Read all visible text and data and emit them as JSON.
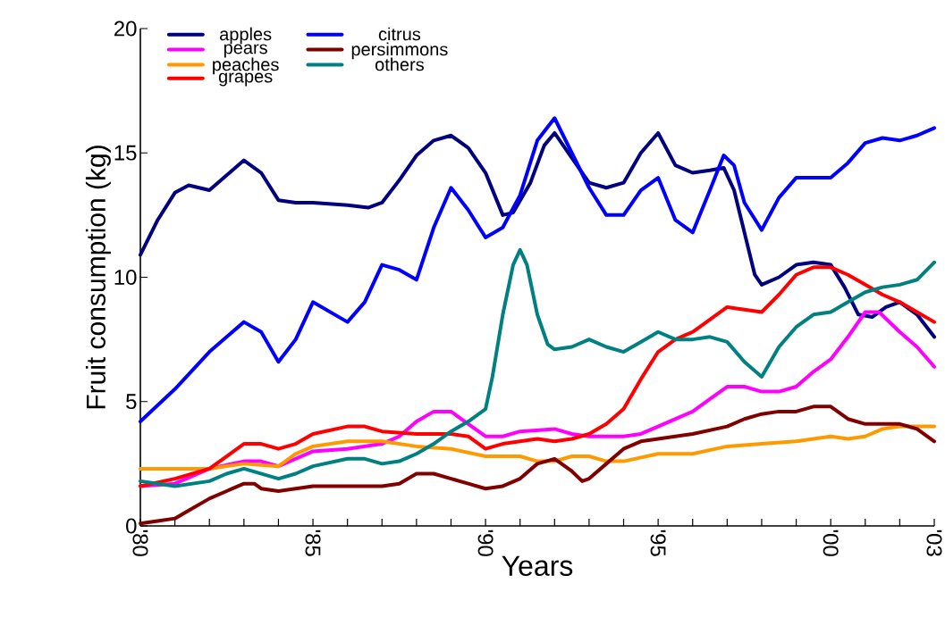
{
  "chart_data": {
    "type": "line",
    "xlabel": "Years",
    "ylabel": "Fruit consumption (kg)",
    "xlim": [
      1980,
      2003
    ],
    "ylim": [
      0,
      20
    ],
    "xticks": [
      {
        "value": 1980,
        "label": "'80"
      },
      {
        "value": 1981,
        "label": null
      },
      {
        "value": 1982,
        "label": null
      },
      {
        "value": 1983,
        "label": null
      },
      {
        "value": 1984,
        "label": null
      },
      {
        "value": 1985,
        "label": "'85"
      },
      {
        "value": 1986,
        "label": null
      },
      {
        "value": 1987,
        "label": null
      },
      {
        "value": 1988,
        "label": null
      },
      {
        "value": 1989,
        "label": null
      },
      {
        "value": 1990,
        "label": "'90"
      },
      {
        "value": 1991,
        "label": null
      },
      {
        "value": 1992,
        "label": null
      },
      {
        "value": 1993,
        "label": null
      },
      {
        "value": 1994,
        "label": null
      },
      {
        "value": 1995,
        "label": "'95"
      },
      {
        "value": 1996,
        "label": null
      },
      {
        "value": 1997,
        "label": null
      },
      {
        "value": 1998,
        "label": null
      },
      {
        "value": 1999,
        "label": null
      },
      {
        "value": 2000,
        "label": "'00"
      },
      {
        "value": 2001,
        "label": null
      },
      {
        "value": 2002,
        "label": null
      },
      {
        "value": 2003,
        "label": "'03"
      }
    ],
    "yticks": [
      0,
      5,
      10,
      15,
      20
    ],
    "grid": false,
    "legend": "top left",
    "marker": "none",
    "line_style": "solid",
    "series": [
      {
        "name": "apples",
        "color": "#000080",
        "x": [
          1980,
          1980.5,
          1981,
          1981.4,
          1982,
          1982.5,
          1983,
          1983.5,
          1984,
          1984.5,
          1985,
          1986,
          1986.6,
          1987,
          1987.5,
          1988,
          1988.5,
          1989,
          1989.5,
          1990,
          1990.5,
          1990.8,
          1991.3,
          1991.7,
          1992,
          1992.5,
          1993,
          1993.5,
          1994,
          1994.5,
          1995,
          1995.5,
          1996,
          1996.5,
          1996.9,
          1997.2,
          1997.5,
          1997.8,
          1998,
          1998.5,
          1999,
          1999.5,
          2000,
          2000.4,
          2000.8,
          2001.2,
          2001.6,
          2002,
          2002.5,
          2003
        ],
        "values": [
          10.9,
          12.3,
          13.4,
          13.7,
          13.5,
          14.1,
          14.7,
          14.2,
          13.1,
          13.0,
          13.0,
          12.9,
          12.8,
          13.0,
          13.9,
          14.9,
          15.5,
          15.7,
          15.2,
          14.2,
          12.5,
          12.6,
          13.8,
          15.3,
          15.8,
          14.8,
          13.8,
          13.6,
          13.8,
          15.0,
          15.8,
          14.5,
          14.2,
          14.3,
          14.4,
          13.5,
          11.8,
          10.1,
          9.7,
          10.0,
          10.5,
          10.6,
          10.5,
          9.6,
          8.5,
          8.4,
          8.8,
          9.0,
          8.5,
          7.6
        ]
      },
      {
        "name": "pears",
        "color": "#ff00ff",
        "x": [
          1980,
          1981,
          1982,
          1983,
          1983.5,
          1984,
          1985,
          1986,
          1987,
          1987.5,
          1988,
          1988.5,
          1989,
          1989.5,
          1990,
          1990.5,
          1991,
          1992,
          1992.5,
          1993,
          1994,
          1994.5,
          1995,
          1996,
          1996.5,
          1997,
          1997.5,
          1998,
          1998.5,
          1999,
          1999.5,
          2000,
          2000.5,
          2001,
          2001.4,
          2002,
          2002.5,
          2003
        ],
        "values": [
          1.6,
          1.7,
          2.3,
          2.6,
          2.6,
          2.4,
          3.0,
          3.1,
          3.3,
          3.6,
          4.2,
          4.6,
          4.6,
          4.1,
          3.6,
          3.6,
          3.8,
          3.9,
          3.7,
          3.6,
          3.6,
          3.7,
          4.0,
          4.6,
          5.1,
          5.6,
          5.6,
          5.4,
          5.4,
          5.6,
          6.2,
          6.7,
          7.6,
          8.6,
          8.6,
          7.8,
          7.2,
          6.4
        ]
      },
      {
        "name": "peaches",
        "color": "#ff9900",
        "x": [
          1980,
          1982,
          1983,
          1984,
          1984.5,
          1985,
          1986,
          1987,
          1988,
          1989,
          1990,
          1990.5,
          1991,
          1991.5,
          1992,
          1992.5,
          1993,
          1993.5,
          1994,
          1995,
          1996,
          1997,
          1998,
          1999,
          2000,
          2000.5,
          2001,
          2001.5,
          2002,
          2003
        ],
        "values": [
          2.3,
          2.3,
          2.5,
          2.4,
          2.9,
          3.2,
          3.4,
          3.4,
          3.2,
          3.1,
          2.8,
          2.8,
          2.8,
          2.6,
          2.6,
          2.8,
          2.8,
          2.6,
          2.6,
          2.9,
          2.9,
          3.2,
          3.3,
          3.4,
          3.6,
          3.5,
          3.6,
          3.9,
          4.0,
          4.0
        ]
      },
      {
        "name": "grapes",
        "color": "#ff0000",
        "x": [
          1980,
          1981,
          1982,
          1982.5,
          1983,
          1983.5,
          1984,
          1984.5,
          1985,
          1986,
          1986.5,
          1987,
          1988,
          1989,
          1989.5,
          1990,
          1990.5,
          1991,
          1991.5,
          1992,
          1992.5,
          1993,
          1993.5,
          1994,
          1994.5,
          1995,
          1995.5,
          1996,
          1996.5,
          1997,
          1997.5,
          1998,
          1998.5,
          1999,
          1999.5,
          2000,
          2000.5,
          2001,
          2001.5,
          2002,
          2002.5,
          2003
        ],
        "values": [
          1.6,
          1.9,
          2.3,
          2.8,
          3.3,
          3.3,
          3.1,
          3.3,
          3.7,
          4.0,
          4.0,
          3.8,
          3.7,
          3.7,
          3.6,
          3.1,
          3.3,
          3.4,
          3.5,
          3.4,
          3.5,
          3.7,
          4.1,
          4.7,
          5.9,
          7.0,
          7.5,
          7.8,
          8.3,
          8.8,
          8.7,
          8.6,
          9.3,
          10.1,
          10.4,
          10.4,
          10.1,
          9.7,
          9.3,
          9.0,
          8.6,
          8.2
        ]
      },
      {
        "name": "citrus",
        "color": "#0000ff",
        "x": [
          1980,
          1981,
          1982,
          1983,
          1983.5,
          1984,
          1984.5,
          1985,
          1986,
          1986.5,
          1987,
          1987.5,
          1988,
          1988.5,
          1989,
          1989.5,
          1990,
          1990.5,
          1991,
          1991.5,
          1992,
          1992.5,
          1993,
          1993.5,
          1994,
          1994.5,
          1995,
          1995.5,
          1996,
          1996.5,
          1996.9,
          1997.2,
          1997.5,
          1998,
          1998.5,
          1999,
          1999.5,
          2000,
          2000.5,
          2001,
          2001.5,
          2002,
          2002.5,
          2003
        ],
        "values": [
          4.2,
          5.5,
          7.0,
          8.2,
          7.8,
          6.6,
          7.5,
          9.0,
          8.2,
          9.0,
          10.5,
          10.3,
          9.9,
          12.0,
          13.6,
          12.7,
          11.6,
          12.0,
          13.3,
          15.5,
          16.4,
          15.0,
          13.6,
          12.5,
          12.5,
          13.5,
          14.0,
          12.3,
          11.8,
          13.5,
          14.9,
          14.5,
          13.0,
          11.9,
          13.2,
          14.0,
          14.0,
          14.0,
          14.6,
          15.4,
          15.6,
          15.5,
          15.7,
          16.0
        ]
      },
      {
        "name": "persimmons",
        "color": "#800000",
        "x": [
          1980,
          1980.5,
          1981,
          1981.5,
          1982,
          1982.5,
          1983,
          1983.3,
          1983.5,
          1984,
          1985,
          1986,
          1987,
          1987.5,
          1988,
          1988.5,
          1989,
          1989.5,
          1990,
          1990.5,
          1991,
          1991.5,
          1992,
          1992.5,
          1992.8,
          1993,
          1993.5,
          1994,
          1994.5,
          1995,
          1996,
          1997,
          1997.5,
          1998,
          1998.5,
          1999,
          1999.5,
          2000,
          2000.5,
          2001,
          2002,
          2002.5,
          2003
        ],
        "values": [
          0.1,
          0.2,
          0.3,
          0.7,
          1.1,
          1.4,
          1.7,
          1.7,
          1.5,
          1.4,
          1.6,
          1.6,
          1.6,
          1.7,
          2.1,
          2.1,
          1.9,
          1.7,
          1.5,
          1.6,
          1.9,
          2.5,
          2.7,
          2.2,
          1.8,
          1.9,
          2.5,
          3.1,
          3.4,
          3.5,
          3.7,
          4.0,
          4.3,
          4.5,
          4.6,
          4.6,
          4.8,
          4.8,
          4.3,
          4.1,
          4.1,
          3.9,
          3.4
        ]
      },
      {
        "name": "others",
        "color": "#008080",
        "x": [
          1980,
          1981,
          1982,
          1982.5,
          1983,
          1984,
          1984.5,
          1985,
          1986,
          1986.5,
          1987,
          1987.5,
          1988,
          1988.5,
          1989,
          1989.5,
          1990,
          1990.2,
          1990.5,
          1990.8,
          1991,
          1991.2,
          1991.5,
          1991.8,
          1992,
          1992.5,
          1993,
          1993.5,
          1994,
          1994.5,
          1995,
          1995.5,
          1996,
          1996.5,
          1997,
          1997.5,
          1998,
          1998.5,
          1999,
          1999.5,
          2000,
          2000.5,
          2001,
          2001.5,
          2002,
          2002.5,
          2003
        ],
        "values": [
          1.8,
          1.6,
          1.8,
          2.1,
          2.3,
          1.9,
          2.1,
          2.4,
          2.7,
          2.7,
          2.5,
          2.6,
          2.9,
          3.3,
          3.8,
          4.2,
          4.7,
          6.0,
          8.5,
          10.5,
          11.1,
          10.5,
          8.5,
          7.3,
          7.1,
          7.2,
          7.5,
          7.2,
          7.0,
          7.4,
          7.8,
          7.5,
          7.5,
          7.6,
          7.4,
          6.6,
          6.0,
          7.2,
          8.0,
          8.5,
          8.6,
          9.0,
          9.4,
          9.6,
          9.7,
          9.9,
          10.6
        ]
      }
    ]
  }
}
